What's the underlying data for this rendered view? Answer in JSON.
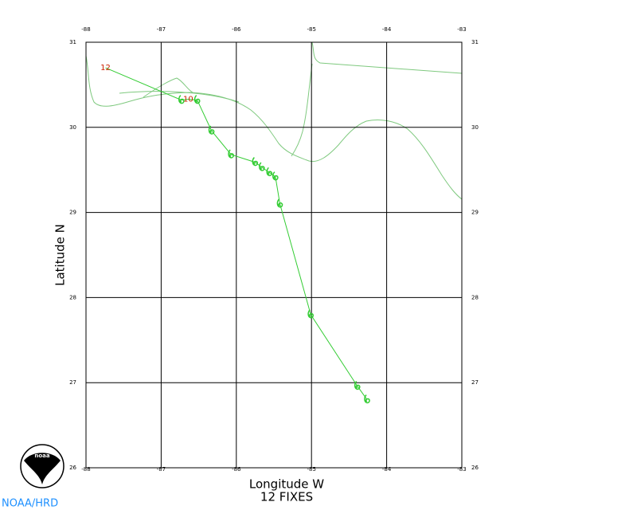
{
  "chart_data": {
    "type": "line",
    "x_label": "Longitude W",
    "y_label": "Latitude N",
    "subtitle": "12 FIXES",
    "credit": "NOAA/HRD",
    "x": [
      -87.74,
      -86.73,
      -86.64,
      -86.52,
      -86.33,
      -86.07,
      -85.75,
      -85.66,
      -85.56,
      -85.48,
      -85.42,
      -85.01,
      -84.39,
      -84.26
    ],
    "values": [
      30.7,
      30.32,
      30.33,
      30.32,
      29.96,
      29.68,
      29.59,
      29.53,
      29.47,
      29.42,
      29.1,
      27.8,
      26.96,
      26.8
    ],
    "point_labels": [
      "12",
      null,
      "10",
      null,
      null,
      null,
      null,
      null,
      null,
      null,
      null,
      null,
      null,
      null
    ],
    "color": "#33cc33",
    "label_color": "#cc2200",
    "xlim": [
      -88,
      -83
    ],
    "ylim": [
      26,
      31
    ],
    "xticks": [
      -88,
      -87,
      -86,
      -85,
      -84,
      -83
    ],
    "yticks": [
      26,
      27,
      28,
      29,
      30,
      31
    ],
    "grid": true
  }
}
